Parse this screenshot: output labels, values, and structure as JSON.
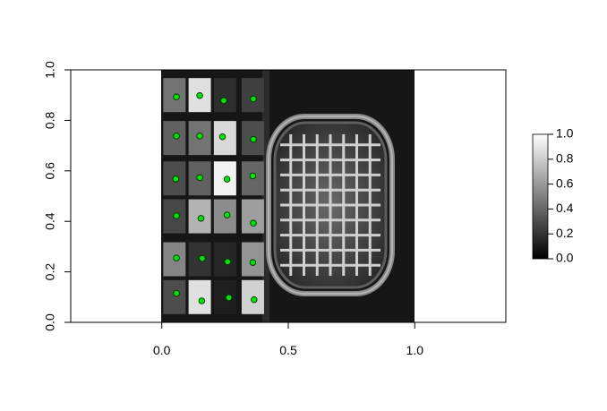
{
  "chart_data": {
    "type": "heatmap",
    "title": "",
    "xlabel": "",
    "ylabel": "",
    "xlim": [
      -0.36,
      1.36
    ],
    "ylim": [
      0,
      1
    ],
    "x_ticks": [
      "0.0",
      "0.5",
      "1.0"
    ],
    "x_tick_values": [
      0,
      0.5,
      1
    ],
    "y_ticks": [
      "0.0",
      "0.2",
      "0.4",
      "0.6",
      "0.8",
      "1.0"
    ],
    "y_tick_values": [
      0,
      0.2,
      0.4,
      0.6,
      0.8,
      1
    ],
    "image_extent": {
      "x": [
        0,
        1
      ],
      "y": [
        0,
        1
      ]
    },
    "colorbar": {
      "scale": "grayscale",
      "range": [
        0,
        1
      ],
      "ticks": [
        "0.0",
        "0.2",
        "0.4",
        "0.6",
        "0.8",
        "1.0"
      ],
      "tick_values": [
        0,
        0.2,
        0.4,
        0.6,
        0.8,
        1
      ]
    },
    "panels": {
      "x_values": [
        0.05,
        0.15,
        0.25,
        0.36
      ],
      "y_values": [
        0.9,
        0.73,
        0.57,
        0.42,
        0.25,
        0.1
      ],
      "brightness": [
        [
          0.45,
          0.88,
          0.18,
          0.25
        ],
        [
          0.38,
          0.45,
          0.85,
          0.3
        ],
        [
          0.3,
          0.38,
          0.95,
          0.4
        ],
        [
          0.28,
          0.7,
          0.55,
          0.62
        ],
        [
          0.52,
          0.2,
          0.15,
          0.58
        ],
        [
          0.3,
          0.88,
          0.12,
          0.82
        ]
      ]
    },
    "points": {
      "color": "#00e600",
      "x": [
        0.058,
        0.15,
        0.245,
        0.362,
        0.058,
        0.15,
        0.24,
        0.362,
        0.055,
        0.15,
        0.258,
        0.36,
        0.058,
        0.155,
        0.258,
        0.362,
        0.058,
        0.16,
        0.26,
        0.36,
        0.058,
        0.158,
        0.265,
        0.365
      ],
      "y": [
        0.893,
        0.898,
        0.878,
        0.885,
        0.738,
        0.738,
        0.735,
        0.725,
        0.568,
        0.573,
        0.567,
        0.58,
        0.422,
        0.412,
        0.425,
        0.393,
        0.255,
        0.253,
        0.24,
        0.237,
        0.115,
        0.085,
        0.098,
        0.09
      ]
    },
    "grid": false,
    "legend": "colorbar-right"
  }
}
